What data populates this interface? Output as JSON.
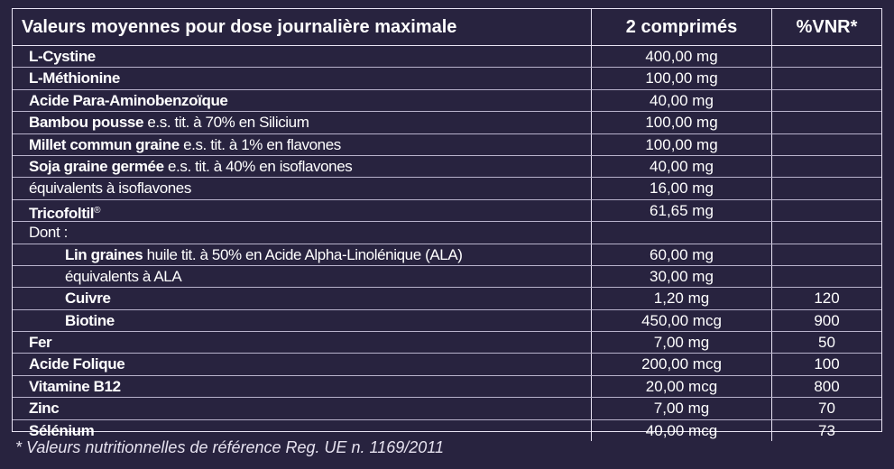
{
  "header": {
    "col1": "Valeurs moyennes pour dose journalière maximale",
    "col2": "2 comprimés",
    "col3": "%VNR*"
  },
  "rows": [
    {
      "name": "L-Cystine",
      "detail": "",
      "sup": "",
      "amount": "400,00 mg",
      "vnr": ""
    },
    {
      "name": "L-Méthionine",
      "detail": "",
      "sup": "",
      "amount": "100,00 mg",
      "vnr": ""
    },
    {
      "name": "Acide Para-Aminobenzoïque",
      "detail": "",
      "sup": "",
      "amount": "40,00 mg",
      "vnr": ""
    },
    {
      "name": "Bambou pousse",
      "detail": " e.s. tit. à 70% en Silicium",
      "sup": "",
      "amount": "100,00 mg",
      "vnr": ""
    },
    {
      "name": "Millet commun graine",
      "detail": " e.s. tit. à 1% en flavones",
      "sup": "",
      "amount": "100,00 mg",
      "vnr": ""
    },
    {
      "name": "Soja graine germée",
      "detail": " e.s. tit. à 40% en isoflavones",
      "sup": "",
      "amount": "40,00 mg",
      "vnr": ""
    },
    {
      "name": "",
      "detail": "équivalents à isoflavones",
      "sup": "",
      "amount": "16,00 mg",
      "vnr": ""
    },
    {
      "name": "Tricofoltil",
      "detail": "",
      "sup": "®",
      "amount": "61,65 mg",
      "vnr": ""
    },
    {
      "name": "",
      "detail": "Dont :",
      "sup": "",
      "amount": "",
      "vnr": ""
    },
    {
      "name": "Lin graines",
      "detail": " huile tit. à 50% en Acide Alpha-Linolénique (ALA)",
      "sup": "",
      "amount": "60,00 mg",
      "vnr": ""
    },
    {
      "name": "",
      "detail": "équivalents à ALA",
      "sup": "",
      "amount": "30,00 mg",
      "vnr": ""
    },
    {
      "name": "Cuivre",
      "detail": "",
      "sup": "",
      "amount": "1,20 mg",
      "vnr": "120"
    },
    {
      "name": "Biotine",
      "detail": "",
      "sup": "",
      "amount": "450,00 mcg",
      "vnr": "900"
    },
    {
      "name": "Fer",
      "detail": "",
      "sup": "",
      "amount": "7,00 mg",
      "vnr": "50"
    },
    {
      "name": "Acide Folique",
      "detail": "",
      "sup": "",
      "amount": "200,00 mcg",
      "vnr": "100"
    },
    {
      "name": "Vitamine B12",
      "detail": "",
      "sup": "",
      "amount": "20,00 mcg",
      "vnr": "800"
    },
    {
      "name": "Zinc",
      "detail": "",
      "sup": "",
      "amount": "7,00 mg",
      "vnr": "70"
    },
    {
      "name": "Sélénium",
      "detail": "",
      "sup": "",
      "amount": "40,00 mcg",
      "vnr": "73"
    }
  ],
  "footnote": "* Valeurs nutritionnelles de référence Reg. UE n. 1169/2011"
}
